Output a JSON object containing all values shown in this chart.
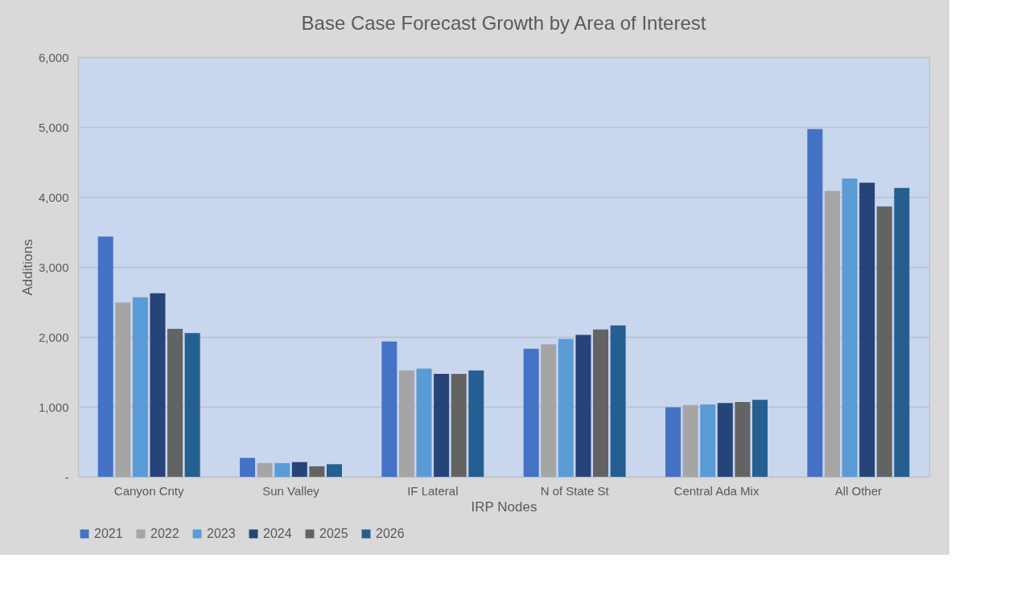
{
  "chart_data": {
    "type": "bar",
    "title": "Base Case Forecast Growth by Area of Interest",
    "xlabel": "IRP Nodes",
    "ylabel": "Additions",
    "categories": [
      "Canyon Cnty",
      "Sun Valley",
      "IF Lateral",
      "N of State St",
      "Central Ada Mix",
      "All Other"
    ],
    "series": [
      {
        "name": "2021",
        "color": "#4472c4",
        "values": [
          3435,
          270,
          1935,
          1830,
          995,
          4970
        ]
      },
      {
        "name": "2022",
        "color": "#a5a5a5",
        "values": [
          2490,
          195,
          1520,
          1895,
          1025,
          4085
        ]
      },
      {
        "name": "2023",
        "color": "#5b9bd5",
        "values": [
          2565,
          195,
          1545,
          1970,
          1035,
          4265
        ]
      },
      {
        "name": "2024",
        "color": "#264478",
        "values": [
          2625,
          210,
          1470,
          2030,
          1055,
          4205
        ]
      },
      {
        "name": "2025",
        "color": "#636363",
        "values": [
          2115,
          150,
          1470,
          2105,
          1070,
          3865
        ]
      },
      {
        "name": "2026",
        "color": "#255e91",
        "values": [
          2055,
          180,
          1520,
          2165,
          1100,
          4130
        ]
      }
    ],
    "ylim": [
      0,
      6000
    ],
    "yticks": [
      {
        "value": 0,
        "label": "-"
      },
      {
        "value": 1000,
        "label": "1,000"
      },
      {
        "value": 2000,
        "label": "2,000"
      },
      {
        "value": 3000,
        "label": "3,000"
      },
      {
        "value": 4000,
        "label": "4,000"
      },
      {
        "value": 5000,
        "label": "5,000"
      },
      {
        "value": 6000,
        "label": "6,000"
      }
    ],
    "grid": "y",
    "legend": "bottom"
  }
}
